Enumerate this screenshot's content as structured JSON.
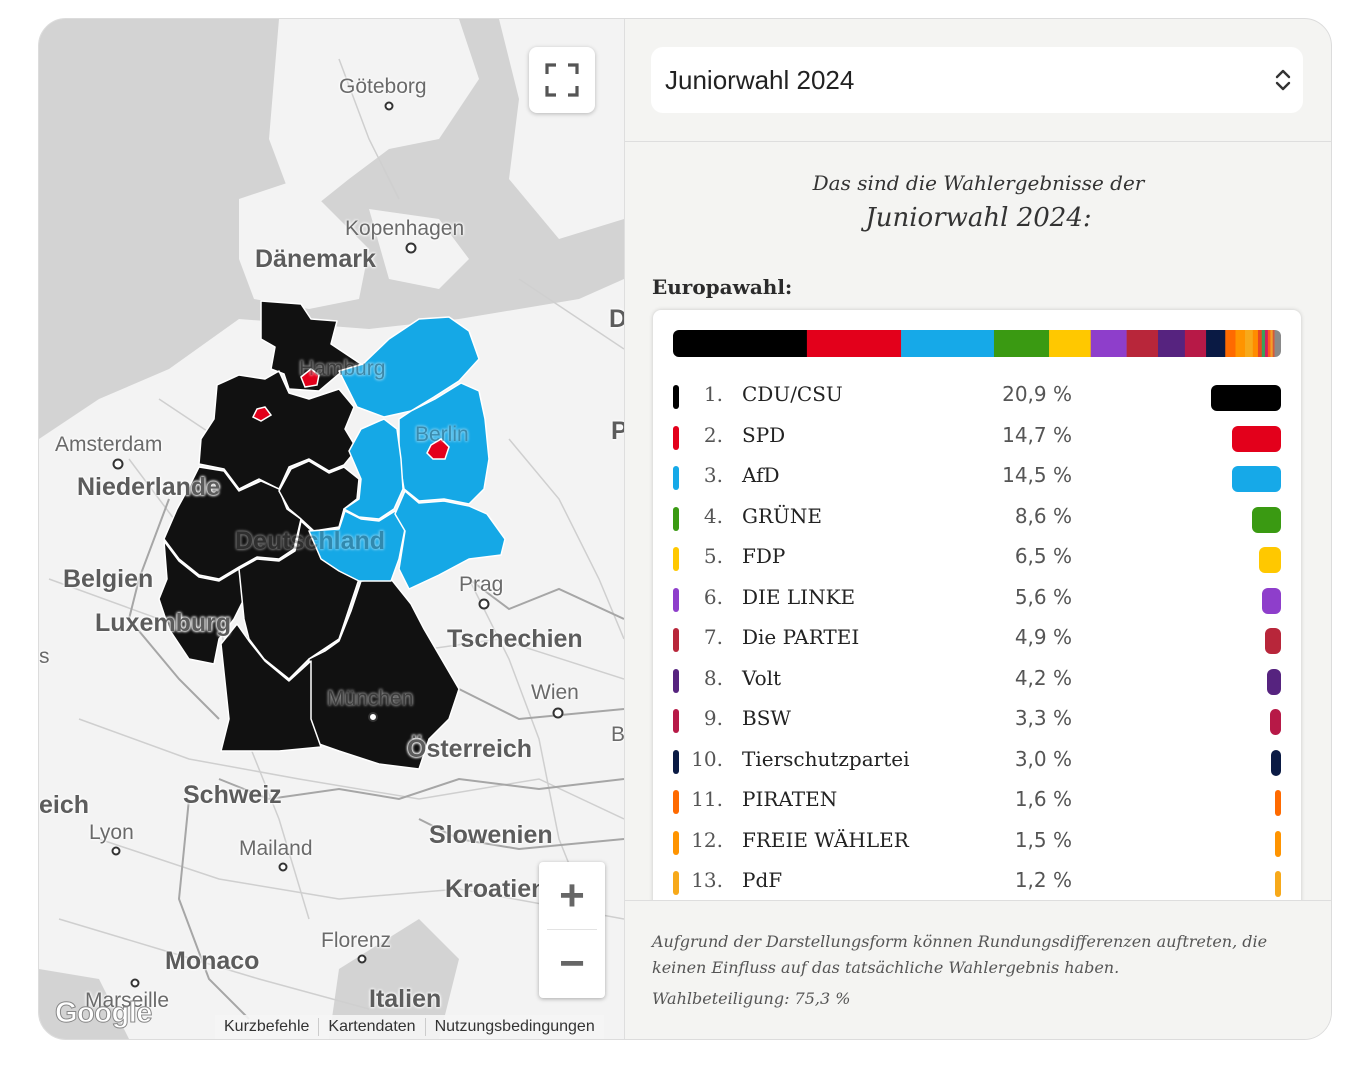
{
  "map": {
    "labels": {
      "goeteborg": "Göteborg",
      "kopenhagen": "Kopenhagen",
      "daenemark": "Dänemark",
      "amsterdam": "Amsterdam",
      "niederlande": "Niederlande",
      "hamburg": "Hamburg",
      "berlin": "Berlin",
      "deutschland": "Deutschland",
      "belgien": "Belgien",
      "luxemburg": "Luxemburg",
      "prag": "Prag",
      "tschechien": "Tschechien",
      "wien": "Wien",
      "muenchen": "München",
      "oesterreich": "Österreich",
      "schweiz": "Schweiz",
      "frankreich": "eich",
      "lyon": "Lyon",
      "mailand": "Mailand",
      "slowenien": "Slowenien",
      "kroatien": "Kroatien",
      "florenz": "Florenz",
      "monaco": "Monaco",
      "marseille": "Marseille",
      "italien": "Italien",
      "edge_d": "D",
      "edge_p": "P",
      "edge_b": "B",
      "edge_s": "s"
    },
    "zoom_in_label": "+",
    "zoom_out_label": "−",
    "google_logo": "Google",
    "attribution": [
      "Kurzbefehle",
      "Kartendaten",
      "Nutzungsbedingungen"
    ],
    "state_colors": {
      "cdu": "#111111",
      "afd": "#15a8e6",
      "spd": "#e3001b"
    }
  },
  "panel": {
    "select_value": "Juniorwahl 2024",
    "intro_line1": "Das sind die Wahlergebnisse der",
    "intro_line2": "Juniorwahl 2024:",
    "section_label": "Europawahl:",
    "footnote": "Aufgrund der Darstellungsform können Rundungsdifferenzen auftreten, die keinen Einfluss auf das tatsächliche Wahlergebnis haben.",
    "turnout": "Wahlbeteiligung: 75,3 %"
  },
  "chart_data": {
    "type": "bar",
    "title": "Europawahl:",
    "categories": [
      "CDU/CSU",
      "SPD",
      "AfD",
      "GRÜNE",
      "FDP",
      "DIE LINKE",
      "Die PARTEI",
      "Volt",
      "BSW",
      "Tierschutzpartei",
      "PIRATEN",
      "FREIE WÄHLER",
      "PdF"
    ],
    "values": [
      20.9,
      14.7,
      14.5,
      8.6,
      6.5,
      5.6,
      4.9,
      4.2,
      3.3,
      3.0,
      1.6,
      1.5,
      1.2
    ],
    "colors": [
      "#000000",
      "#e3001b",
      "#16a9e8",
      "#3a9a12",
      "#ffc800",
      "#8e3ecb",
      "#b8263a",
      "#56237f",
      "#b71947",
      "#0a1a44",
      "#ff6a00",
      "#ff9400",
      "#f7a91a"
    ],
    "stack_tail": {
      "values": [
        0.8,
        0.6,
        0.5,
        0.45,
        0.4,
        0.35,
        0.3,
        1.0
      ],
      "colors": [
        "#ff8c00",
        "#e84a20",
        "#3aa05a",
        "#d02060",
        "#ff5a1e",
        "#f2a02a",
        "#d45a3a",
        "#8a8a8a"
      ]
    },
    "xlim": [
      0,
      20.9
    ]
  }
}
